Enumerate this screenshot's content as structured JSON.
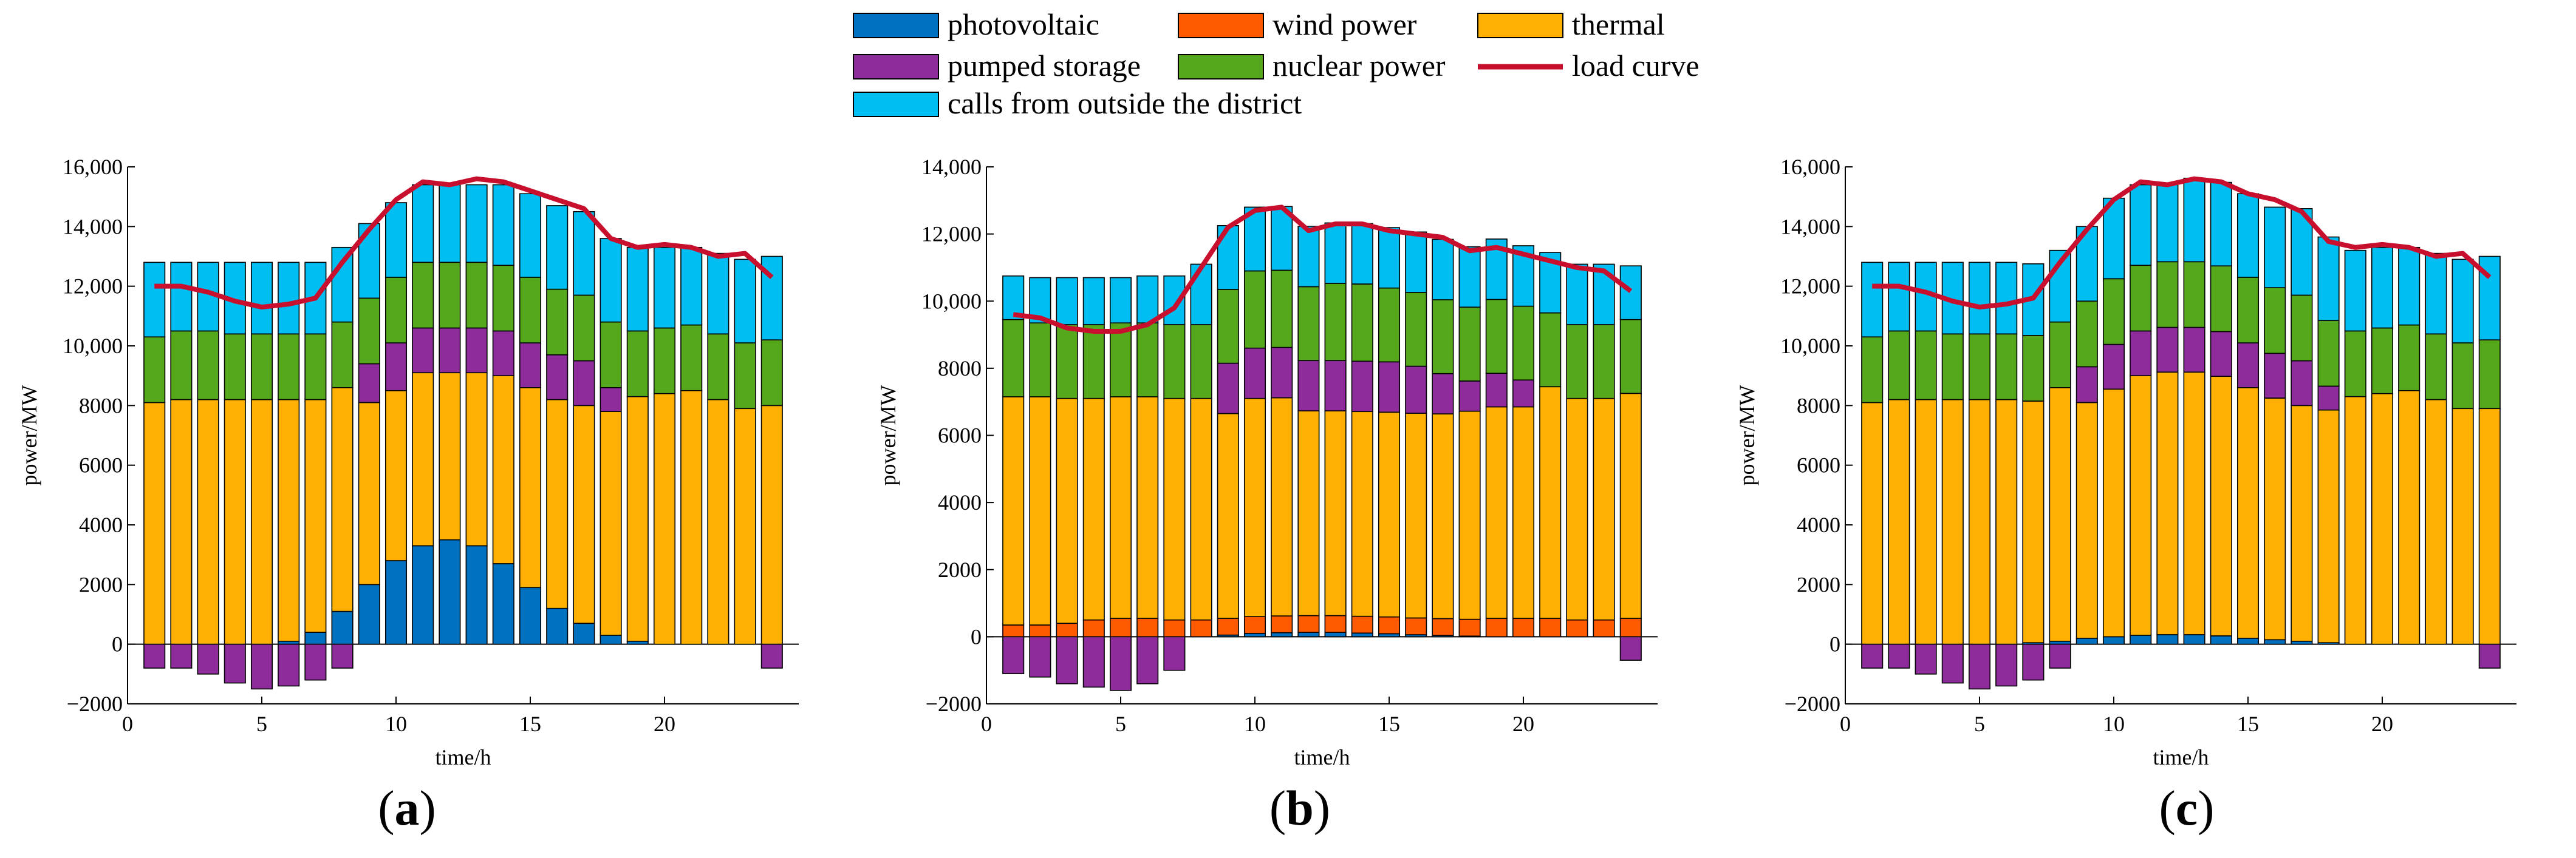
{
  "legend": {
    "items": [
      {
        "key": "pv",
        "label": "photovoltaic",
        "color": "#0070c0",
        "kind": "box"
      },
      {
        "key": "wind",
        "label": "wind power",
        "color": "#ff5a00",
        "kind": "box"
      },
      {
        "key": "thermal",
        "label": "thermal",
        "color": "#ffb000",
        "kind": "box"
      },
      {
        "key": "pumped",
        "label": "pumped storage",
        "color": "#8e2c9c",
        "kind": "box"
      },
      {
        "key": "nuclear",
        "label": "nuclear power",
        "color": "#55a81c",
        "kind": "box"
      },
      {
        "key": "load",
        "label": "load curve",
        "color": "#c8102e",
        "kind": "line"
      },
      {
        "key": "calls",
        "label": "calls from outside the district",
        "color": "#00bdf2",
        "kind": "box"
      }
    ]
  },
  "panels": [
    {
      "label_open": "(",
      "label_letter": "a",
      "label_close": ")"
    },
    {
      "label_open": "(",
      "label_letter": "b",
      "label_close": ")"
    },
    {
      "label_open": "(",
      "label_letter": "c",
      "label_close": ")"
    }
  ],
  "chart_data": [
    {
      "type": "bar",
      "stacked": true,
      "panel": "a",
      "xlabel": "time/h",
      "ylabel": "power/MW",
      "xlim": [
        0,
        25
      ],
      "ylim": [
        -2000,
        16000
      ],
      "xticks": [
        0,
        5,
        10,
        15,
        20
      ],
      "yticks": [
        -2000,
        0,
        2000,
        4000,
        6000,
        8000,
        10000,
        12000,
        14000,
        16000
      ],
      "ytick_labels": [
        "−2000",
        "0",
        "2000",
        "4000",
        "6000",
        "8000",
        "10,000",
        "12,000",
        "14,000",
        "16,000"
      ],
      "categories": [
        1,
        2,
        3,
        4,
        5,
        6,
        7,
        8,
        9,
        10,
        11,
        12,
        13,
        14,
        15,
        16,
        17,
        18,
        19,
        20,
        21,
        22,
        23,
        24
      ],
      "series": [
        {
          "key": "pv",
          "name": "photovoltaic",
          "values": [
            0,
            0,
            0,
            0,
            0,
            100,
            400,
            1100,
            2000,
            2800,
            3300,
            3500,
            3300,
            2700,
            1900,
            1200,
            700,
            300,
            100,
            0,
            0,
            0,
            0,
            0
          ]
        },
        {
          "key": "wind",
          "name": "wind power",
          "values": [
            0,
            0,
            0,
            0,
            0,
            0,
            0,
            0,
            0,
            0,
            0,
            0,
            0,
            0,
            0,
            0,
            0,
            0,
            0,
            0,
            0,
            0,
            0,
            0
          ]
        },
        {
          "key": "thermal",
          "name": "thermal",
          "values": [
            8100,
            8200,
            8200,
            8200,
            8200,
            8100,
            7800,
            7500,
            6100,
            5700,
            5800,
            5600,
            5800,
            6300,
            6700,
            7000,
            7300,
            7500,
            8200,
            8400,
            8500,
            8200,
            7900,
            8000
          ]
        },
        {
          "key": "pumped",
          "name": "pumped storage",
          "values": [
            -800,
            -800,
            -1000,
            -1300,
            -1500,
            -1400,
            -1200,
            -800,
            1300,
            1600,
            1500,
            1500,
            1500,
            1500,
            1500,
            1500,
            1500,
            800,
            0,
            0,
            0,
            0,
            0,
            -800
          ]
        },
        {
          "key": "nuclear",
          "name": "nuclear power",
          "values": [
            2200,
            2300,
            2300,
            2200,
            2200,
            2200,
            2200,
            2200,
            2200,
            2200,
            2200,
            2200,
            2200,
            2200,
            2200,
            2200,
            2200,
            2200,
            2200,
            2200,
            2200,
            2200,
            2200,
            2200
          ]
        },
        {
          "key": "calls",
          "name": "calls from outside the district",
          "values": [
            2500,
            2300,
            2300,
            2400,
            2400,
            2400,
            2400,
            2500,
            2500,
            2500,
            2600,
            2600,
            2600,
            2700,
            2800,
            2800,
            2800,
            2800,
            2800,
            2700,
            2600,
            2700,
            2800,
            2800
          ]
        }
      ],
      "load_curve": [
        12000,
        12000,
        11800,
        11500,
        11300,
        11400,
        11600,
        12800,
        13900,
        14900,
        15500,
        15400,
        15600,
        15500,
        15200,
        14900,
        14600,
        13600,
        13300,
        13400,
        13300,
        13000,
        13100,
        12300
      ]
    },
    {
      "type": "bar",
      "stacked": true,
      "panel": "b",
      "xlabel": "time/h",
      "ylabel": "power/MW",
      "xlim": [
        0,
        25
      ],
      "ylim": [
        -2000,
        14000
      ],
      "xticks": [
        0,
        5,
        10,
        15,
        20
      ],
      "yticks": [
        -2000,
        0,
        2000,
        4000,
        6000,
        8000,
        10000,
        12000,
        14000
      ],
      "ytick_labels": [
        "−2000",
        "0",
        "2000",
        "4000",
        "6000",
        "8000",
        "10,000",
        "12,000",
        "14,000"
      ],
      "categories": [
        1,
        2,
        3,
        4,
        5,
        6,
        7,
        8,
        9,
        10,
        11,
        12,
        13,
        14,
        15,
        16,
        17,
        18,
        19,
        20,
        21,
        22,
        23,
        24
      ],
      "series": [
        {
          "key": "pv",
          "name": "photovoltaic",
          "values": [
            0,
            0,
            0,
            0,
            0,
            0,
            0,
            0,
            50,
            100,
            120,
            130,
            130,
            110,
            90,
            60,
            40,
            20,
            0,
            0,
            0,
            0,
            0,
            0
          ]
        },
        {
          "key": "wind",
          "name": "wind power",
          "values": [
            350,
            350,
            400,
            500,
            550,
            550,
            500,
            500,
            500,
            500,
            500,
            500,
            500,
            500,
            500,
            500,
            500,
            500,
            550,
            550,
            550,
            500,
            500,
            550
          ]
        },
        {
          "key": "thermal",
          "name": "thermal",
          "values": [
            6800,
            6800,
            6700,
            6600,
            6600,
            6600,
            6600,
            6600,
            6100,
            6500,
            6500,
            6100,
            6100,
            6100,
            6100,
            6100,
            6100,
            6200,
            6300,
            6300,
            6900,
            6600,
            6600,
            6700
          ]
        },
        {
          "key": "pumped",
          "name": "pumped storage",
          "values": [
            -1100,
            -1200,
            -1400,
            -1500,
            -1600,
            -1400,
            -1000,
            0,
            1500,
            1500,
            1500,
            1500,
            1500,
            1500,
            1500,
            1400,
            1200,
            900,
            1000,
            800,
            0,
            0,
            0,
            -700
          ]
        },
        {
          "key": "nuclear",
          "name": "nuclear power",
          "values": [
            2300,
            2200,
            2200,
            2200,
            2200,
            2200,
            2200,
            2200,
            2200,
            2300,
            2300,
            2200,
            2300,
            2300,
            2200,
            2200,
            2200,
            2200,
            2200,
            2200,
            2200,
            2200,
            2200,
            2200
          ]
        },
        {
          "key": "calls",
          "name": "calls from outside the district",
          "values": [
            1300,
            1350,
            1400,
            1400,
            1350,
            1400,
            1450,
            1800,
            1900,
            1900,
            1900,
            1800,
            1800,
            1800,
            1800,
            1800,
            1800,
            1800,
            1800,
            1800,
            1800,
            1800,
            1800,
            1600
          ]
        }
      ],
      "load_curve": [
        9600,
        9500,
        9200,
        9100,
        9100,
        9300,
        9800,
        11000,
        12200,
        12700,
        12800,
        12100,
        12300,
        12300,
        12100,
        12000,
        11900,
        11500,
        11600,
        11400,
        11200,
        11000,
        10900,
        10300
      ]
    },
    {
      "type": "bar",
      "stacked": true,
      "panel": "c",
      "xlabel": "time/h",
      "ylabel": "power/MW",
      "xlim": [
        0,
        25
      ],
      "ylim": [
        -2000,
        16000
      ],
      "xticks": [
        0,
        5,
        10,
        15,
        20
      ],
      "yticks": [
        -2000,
        0,
        2000,
        4000,
        6000,
        8000,
        10000,
        12000,
        14000,
        16000
      ],
      "ytick_labels": [
        "−2000",
        "0",
        "2000",
        "4000",
        "6000",
        "8000",
        "10,000",
        "12,000",
        "14,000",
        "16,000"
      ],
      "categories": [
        1,
        2,
        3,
        4,
        5,
        6,
        7,
        8,
        9,
        10,
        11,
        12,
        13,
        14,
        15,
        16,
        17,
        18,
        19,
        20,
        21,
        22,
        23,
        24
      ],
      "series": [
        {
          "key": "pv",
          "name": "photovoltaic",
          "values": [
            0,
            0,
            0,
            0,
            0,
            0,
            50,
            100,
            200,
            250,
            300,
            320,
            320,
            280,
            200,
            150,
            100,
            50,
            0,
            0,
            0,
            0,
            0,
            0
          ]
        },
        {
          "key": "wind",
          "name": "wind power",
          "values": [
            0,
            0,
            0,
            0,
            0,
            0,
            0,
            0,
            0,
            0,
            0,
            0,
            0,
            0,
            0,
            0,
            0,
            0,
            0,
            0,
            0,
            0,
            0,
            0
          ]
        },
        {
          "key": "thermal",
          "name": "thermal",
          "values": [
            8100,
            8200,
            8200,
            8200,
            8200,
            8200,
            8100,
            8500,
            7900,
            8300,
            8700,
            8800,
            8800,
            8700,
            8400,
            8100,
            7900,
            7800,
            8300,
            8400,
            8500,
            8200,
            7900,
            7900
          ]
        },
        {
          "key": "pumped",
          "name": "pumped storage",
          "values": [
            -800,
            -800,
            -1000,
            -1300,
            -1500,
            -1400,
            -1200,
            -800,
            1200,
            1500,
            1500,
            1500,
            1500,
            1500,
            1500,
            1500,
            1500,
            800,
            0,
            0,
            0,
            0,
            0,
            -800
          ]
        },
        {
          "key": "nuclear",
          "name": "nuclear power",
          "values": [
            2200,
            2300,
            2300,
            2200,
            2200,
            2200,
            2200,
            2200,
            2200,
            2200,
            2200,
            2200,
            2200,
            2200,
            2200,
            2200,
            2200,
            2200,
            2200,
            2200,
            2200,
            2200,
            2200,
            2300
          ]
        },
        {
          "key": "calls",
          "name": "calls from outside the district",
          "values": [
            2500,
            2300,
            2300,
            2400,
            2400,
            2400,
            2400,
            2400,
            2500,
            2700,
            2700,
            2600,
            2800,
            2800,
            2800,
            2700,
            2900,
            2800,
            2700,
            2700,
            2600,
            2700,
            2800,
            2800
          ]
        }
      ],
      "load_curve": [
        12000,
        12000,
        11800,
        11500,
        11300,
        11400,
        11600,
        12800,
        13900,
        14900,
        15500,
        15400,
        15600,
        15500,
        15100,
        14900,
        14500,
        13500,
        13300,
        13400,
        13300,
        13000,
        13100,
        12300
      ]
    }
  ]
}
